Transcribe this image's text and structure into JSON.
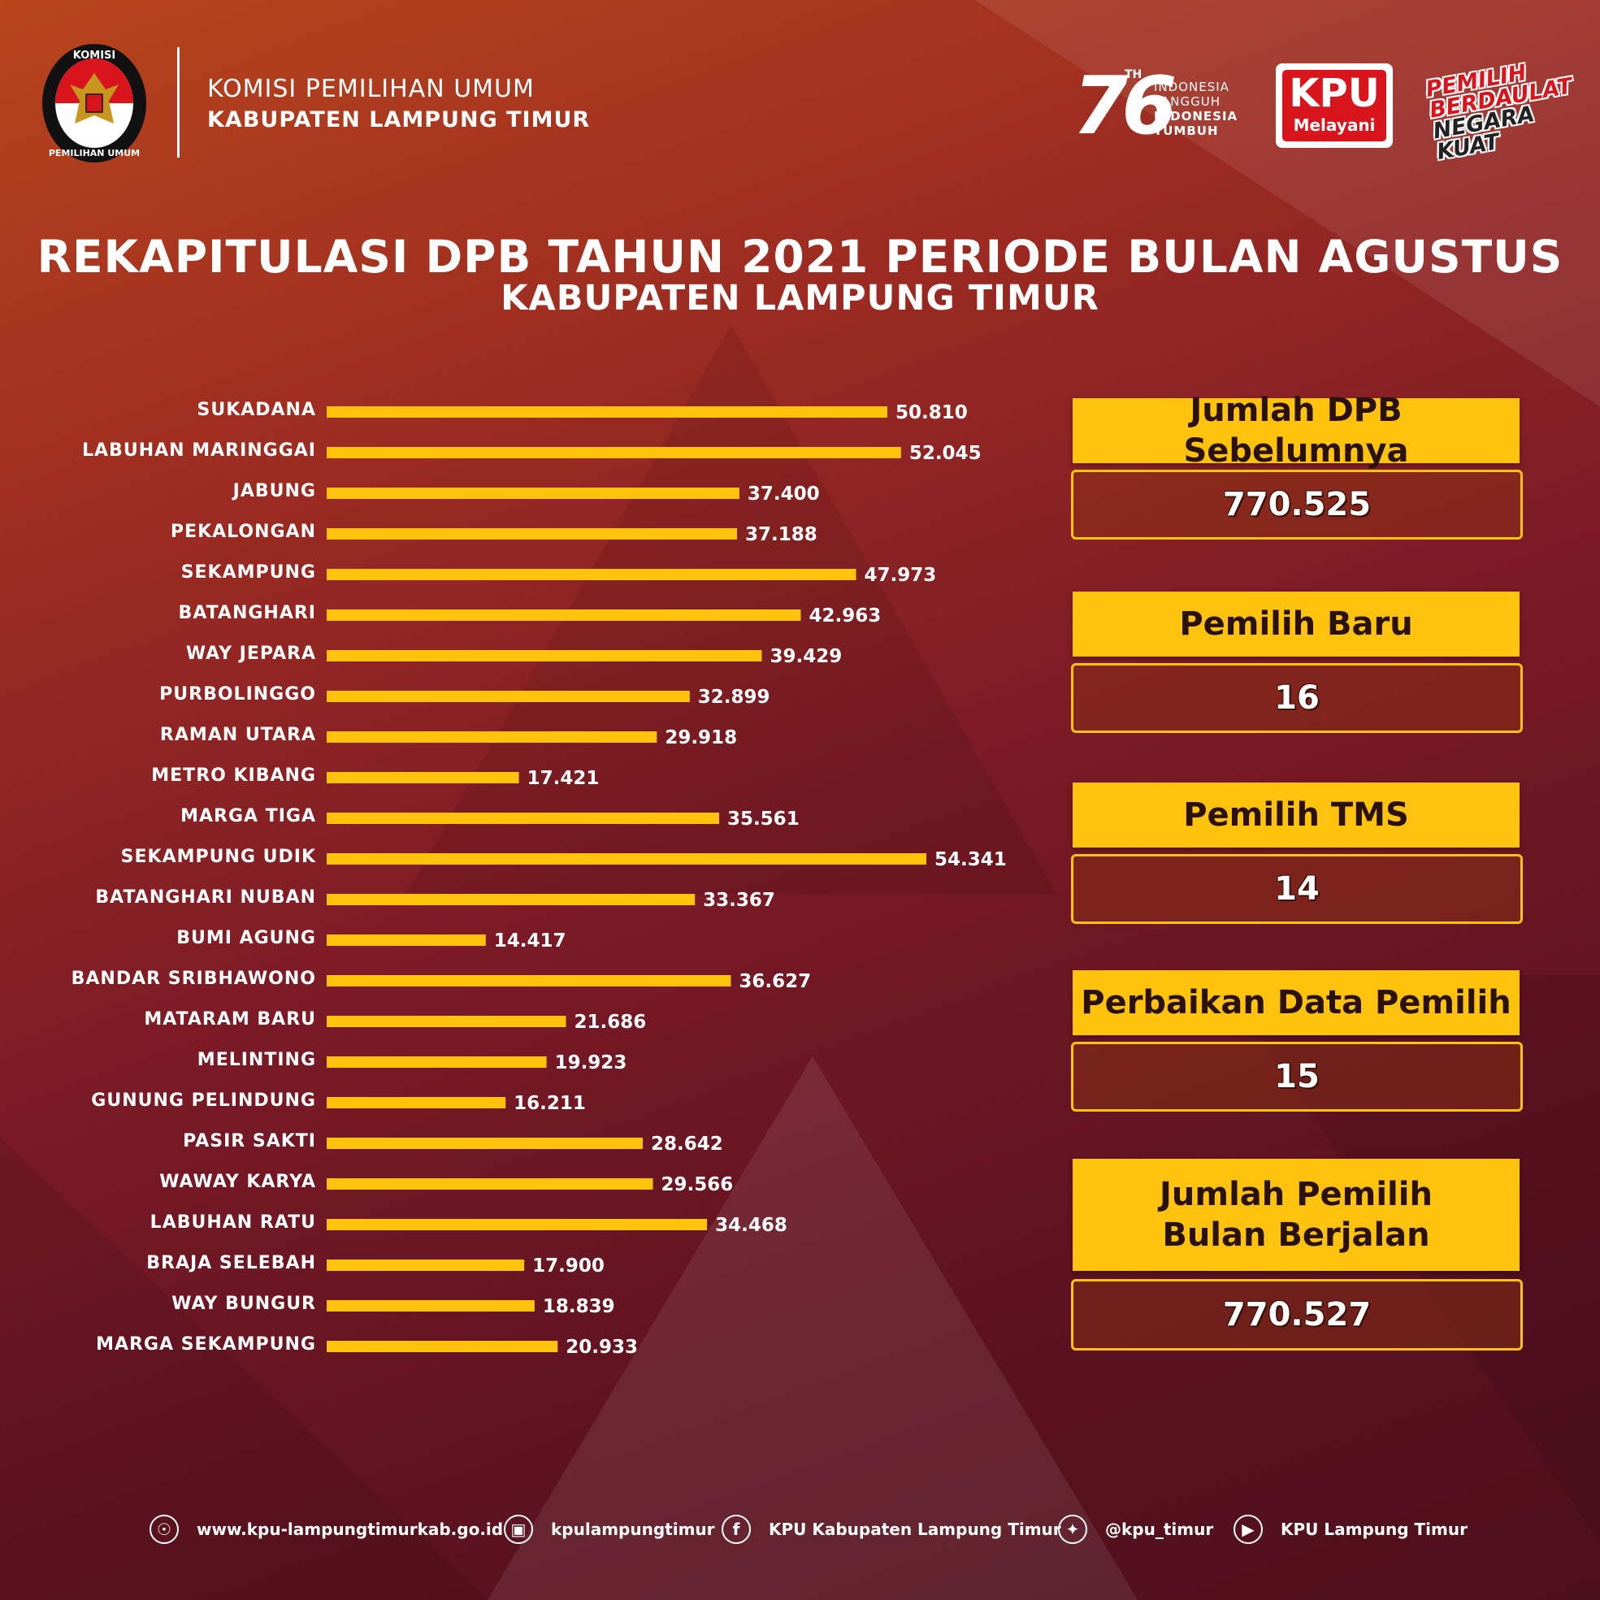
{
  "header": {
    "org_line1": "KOMISI PEMILIHAN UMUM",
    "org_line2": "KABUPATEN LAMPUNG TIMUR",
    "emblem_top": "KOMISI",
    "emblem_bottom": "PEMILIHAN UMUM",
    "anniv_number": "76",
    "anniv_suffix": "TH",
    "anniv_lines": [
      "INDONESIA",
      "TANGGUH",
      "INDONESIA",
      "TUMBUH"
    ],
    "kpu_logo_big": "KPU",
    "kpu_logo_small": "Melayani",
    "slogan_lines": [
      "PEMILIH",
      "BERDAULAT",
      "NEGARA",
      "KUAT"
    ]
  },
  "title": {
    "line1": "REKAPITULASI DPB TAHUN 2021 PERIODE BULAN AGUSTUS",
    "line2": "KABUPATEN LAMPUNG TIMUR"
  },
  "chart_data": {
    "type": "bar",
    "orientation": "horizontal",
    "categories": [
      "SUKADANA",
      "LABUHAN MARINGGAI",
      "JABUNG",
      "PEKALONGAN",
      "SEKAMPUNG",
      "BATANGHARI",
      "WAY JEPARA",
      "PURBOLINGGO",
      "RAMAN UTARA",
      "METRO KIBANG",
      "MARGA TIGA",
      "SEKAMPUNG UDIK",
      "BATANGHARI NUBAN",
      "BUMI AGUNG",
      "BANDAR SRIBHAWONO",
      "MATARAM BARU",
      "MELINTING",
      "GUNUNG PELINDUNG",
      "PASIR SAKTI",
      "WAWAY KARYA",
      "LABUHAN RATU",
      "BRAJA SELEBAH",
      "WAY BUNGUR",
      "MARGA SEKAMPUNG"
    ],
    "values": [
      50810,
      52045,
      37400,
      37188,
      47973,
      42963,
      39429,
      32899,
      29918,
      17421,
      35561,
      54341,
      33367,
      14417,
      36627,
      21686,
      19923,
      16211,
      28642,
      29566,
      34468,
      17900,
      18839,
      20933
    ],
    "value_labels": [
      "50.810",
      "52.045",
      "37.400",
      "37.188",
      "47.973",
      "42.963",
      "39.429",
      "32.899",
      "29.918",
      "17.421",
      "35.561",
      "54.341",
      "33.367",
      "14.417",
      "36.627",
      "21.686",
      "19.923",
      "16.211",
      "28.642",
      "29.566",
      "34.468",
      "17.900",
      "18.839",
      "20.933"
    ],
    "bar_color": "#ffc20e",
    "xlim": [
      0,
      54341
    ],
    "grid": false
  },
  "summary": [
    {
      "label": "Jumlah DPB Sebelumnya",
      "value": "770.525"
    },
    {
      "label": "Pemilih Baru",
      "value": "16"
    },
    {
      "label": "Pemilih TMS",
      "value": "14"
    },
    {
      "label": "Perbaikan Data Pemilih",
      "value": "15"
    },
    {
      "label_line1": "Jumlah Pemilih",
      "label_line2": "Bulan Berjalan",
      "value": "770.527"
    }
  ],
  "footer": {
    "website": "www.kpu-lampungtimurkab.go.id",
    "instagram": "kpulampungtimur",
    "facebook": "KPU Kabupaten Lampung Timur",
    "twitter": "@kpu_timur",
    "youtube": "KPU Lampung Timur"
  },
  "colors": {
    "accent": "#ffc20e",
    "bg_top": "#b8451c",
    "bg_bottom": "#4e0f1c",
    "kpu_red": "#d8141c"
  },
  "icons": [
    "globe-icon",
    "instagram-icon",
    "facebook-icon",
    "twitter-icon",
    "youtube-icon"
  ]
}
